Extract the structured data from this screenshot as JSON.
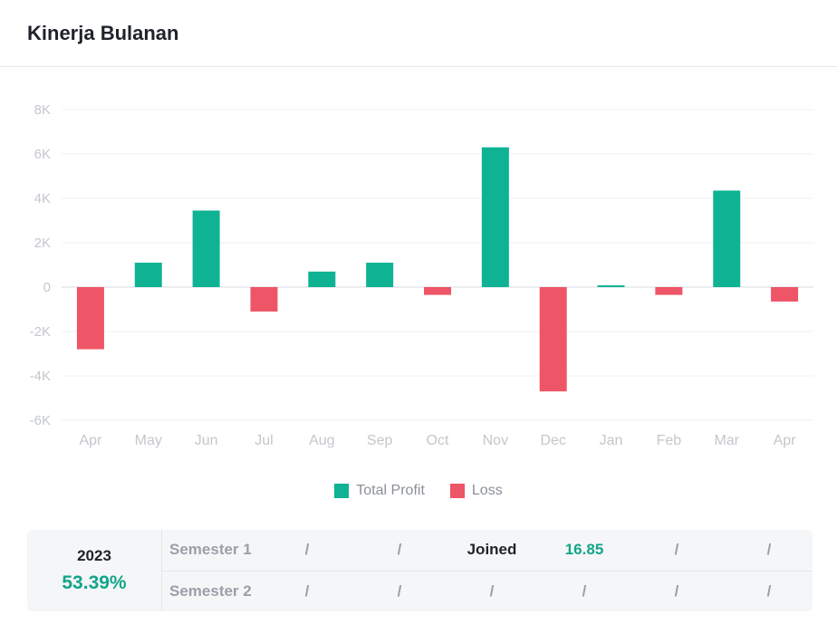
{
  "title": "Kinerja Bulanan",
  "colors": {
    "profit": "#0fb394",
    "loss": "#ee5566"
  },
  "chart_data": {
    "type": "bar",
    "categories": [
      "Apr",
      "May",
      "Jun",
      "Jul",
      "Aug",
      "Sep",
      "Oct",
      "Nov",
      "Dec",
      "Jan",
      "Feb",
      "Mar",
      "Apr"
    ],
    "values": [
      -2800,
      1100,
      3450,
      -1100,
      700,
      1100,
      -350,
      6300,
      -4700,
      80,
      -350,
      4350,
      -650
    ],
    "series": [
      {
        "name": "Total Profit",
        "color": "#0fb394"
      },
      {
        "name": "Loss",
        "color": "#ee5566"
      }
    ],
    "ylim": [
      -6000,
      8000
    ],
    "yticks": [
      8000,
      6000,
      4000,
      2000,
      0,
      -2000,
      -4000,
      -6000
    ],
    "ytick_labels": [
      "8K",
      "6K",
      "4K",
      "2K",
      "0",
      "-2K",
      "-4K",
      "-6K"
    ],
    "legend_position": "bottom-center",
    "grid": true
  },
  "summary": {
    "year": "2023",
    "percent": "53.39%",
    "rows": [
      {
        "label": "Semester 1",
        "cells": [
          "/",
          "/",
          "Joined",
          "16.85",
          "/",
          "/"
        ]
      },
      {
        "label": "Semester 2",
        "cells": [
          "/",
          "/",
          "/",
          "/",
          "/",
          "/"
        ]
      }
    ]
  }
}
